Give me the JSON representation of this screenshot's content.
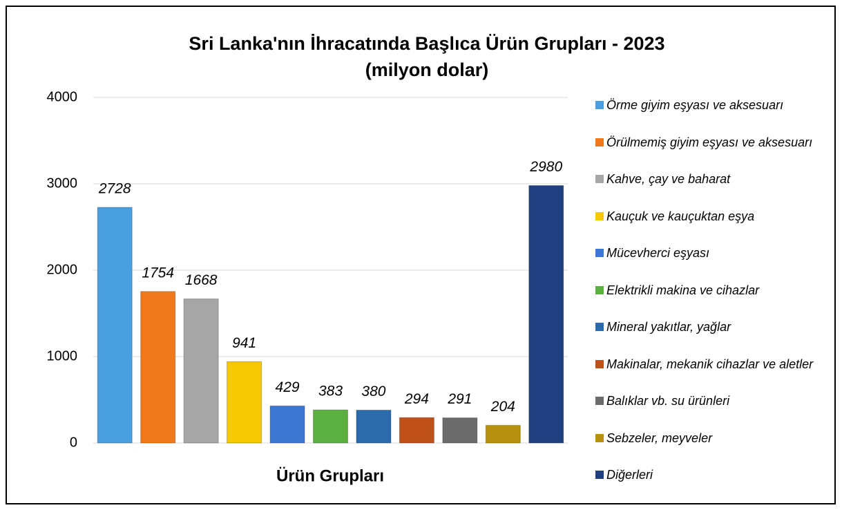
{
  "chart_data": {
    "type": "bar",
    "title": "Sri Lanka'nın İhracatında Başlıca Ürün Grupları - 2023",
    "subtitle": "(milyon dolar)",
    "x_label": "Ürün Grupları",
    "categories": [
      "Örme giyim eşyası ve aksesuarı",
      "Örülmemiş giyim eşyası ve aksesuarı",
      "Kahve, çay ve baharat",
      "Kauçuk ve kauçuktan eşya",
      "Mücevherci eşyası",
      "Elektrikli makina ve cihazlar",
      "Mineral yakıtlar, yağlar",
      "Makinalar, mekanik cihazlar ve aletler",
      "Balıklar vb. su ürünleri",
      "Sebzeler, meyveler",
      "Diğerleri"
    ],
    "values": [
      2728,
      1754,
      1668,
      941,
      429,
      383,
      380,
      294,
      291,
      204,
      2980
    ],
    "colors": [
      "#4a9fe0",
      "#f07a1a",
      "#a6a6a6",
      "#f5c800",
      "#3a78d4",
      "#5cb040",
      "#2a6aad",
      "#c0501a",
      "#6b6b6b",
      "#b8900f",
      "#1f3f80"
    ],
    "ylim": [
      0,
      4000
    ],
    "yticks": [
      0,
      1000,
      2000,
      3000,
      4000
    ],
    "grid": true,
    "legend": "right"
  }
}
